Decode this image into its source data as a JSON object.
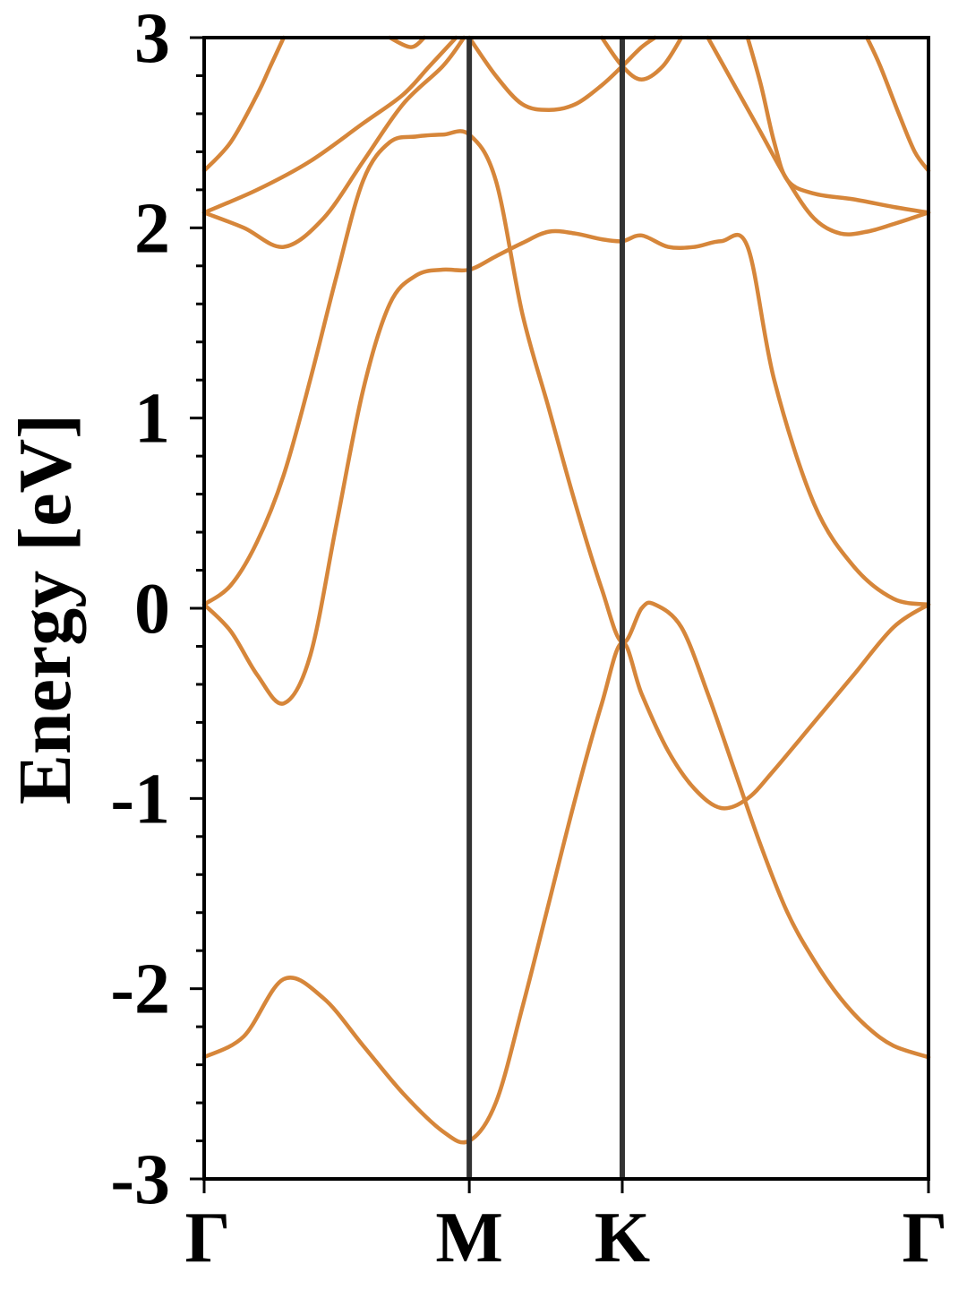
{
  "chart_data": {
    "type": "line",
    "title": "",
    "xlabel": "",
    "ylabel": "Energy [eV]",
    "ylim": [
      -3,
      3
    ],
    "yticks": [
      -3,
      -2,
      -1,
      0,
      1,
      2,
      3
    ],
    "ytick_labels": [
      "-3",
      "-2",
      "-1",
      "0",
      "1",
      "2",
      "3"
    ],
    "y_minor_step": 0.2,
    "k_points": [
      {
        "label": "Γ",
        "x": 0.0
      },
      {
        "label": "M",
        "x": 1.0
      },
      {
        "label": "K",
        "x": 1.577
      },
      {
        "label": "Γ",
        "x": 2.732
      }
    ],
    "grid": false,
    "legend": "none",
    "colors": {
      "band": "#d6863a",
      "k_line": "#333333"
    },
    "series": [
      {
        "values": [
          [
            0.0,
            -2.36
          ],
          [
            0.15,
            -2.25
          ],
          [
            0.3,
            -1.95
          ],
          [
            0.45,
            -2.05
          ],
          [
            0.6,
            -2.3
          ],
          [
            0.75,
            -2.55
          ],
          [
            0.9,
            -2.75
          ],
          [
            1.0,
            -2.8
          ],
          [
            1.1,
            -2.6
          ],
          [
            1.2,
            -2.1
          ],
          [
            1.3,
            -1.55
          ],
          [
            1.4,
            -1.0
          ],
          [
            1.5,
            -0.5
          ],
          [
            1.577,
            -0.18
          ],
          [
            1.65,
            -0.45
          ],
          [
            1.75,
            -0.75
          ],
          [
            1.85,
            -0.95
          ],
          [
            1.95,
            -1.05
          ],
          [
            2.05,
            -1.0
          ],
          [
            2.15,
            -0.85
          ],
          [
            2.3,
            -0.6
          ],
          [
            2.45,
            -0.35
          ],
          [
            2.6,
            -0.1
          ],
          [
            2.732,
            0.02
          ]
        ]
      },
      {
        "values": [
          [
            0.0,
            0.02
          ],
          [
            0.1,
            -0.12
          ],
          [
            0.2,
            -0.35
          ],
          [
            0.3,
            -0.5
          ],
          [
            0.4,
            -0.25
          ],
          [
            0.5,
            0.45
          ],
          [
            0.6,
            1.15
          ],
          [
            0.7,
            1.6
          ],
          [
            0.8,
            1.75
          ],
          [
            0.9,
            1.78
          ],
          [
            1.0,
            1.78
          ],
          [
            1.1,
            1.85
          ],
          [
            1.2,
            1.92
          ],
          [
            1.3,
            1.98
          ],
          [
            1.4,
            1.97
          ],
          [
            1.5,
            1.94
          ],
          [
            1.577,
            1.93
          ],
          [
            1.65,
            1.96
          ],
          [
            1.75,
            1.9
          ],
          [
            1.85,
            1.9
          ],
          [
            1.95,
            1.93
          ],
          [
            2.05,
            1.9
          ],
          [
            2.15,
            1.2
          ],
          [
            2.3,
            0.55
          ],
          [
            2.45,
            0.22
          ],
          [
            2.6,
            0.05
          ],
          [
            2.732,
            0.02
          ]
        ]
      },
      {
        "values": [
          [
            0.0,
            0.02
          ],
          [
            0.1,
            0.12
          ],
          [
            0.2,
            0.35
          ],
          [
            0.3,
            0.7
          ],
          [
            0.4,
            1.2
          ],
          [
            0.5,
            1.75
          ],
          [
            0.6,
            2.25
          ],
          [
            0.7,
            2.45
          ],
          [
            0.8,
            2.48
          ],
          [
            0.9,
            2.49
          ],
          [
            1.0,
            2.49
          ],
          [
            1.1,
            2.25
          ],
          [
            1.2,
            1.55
          ],
          [
            1.3,
            1.05
          ],
          [
            1.4,
            0.55
          ],
          [
            1.5,
            0.1
          ],
          [
            1.577,
            -0.18
          ],
          [
            1.65,
            0.0
          ],
          [
            1.7,
            0.02
          ],
          [
            1.8,
            -0.1
          ],
          [
            1.9,
            -0.45
          ],
          [
            2.0,
            -0.85
          ],
          [
            2.1,
            -1.25
          ],
          [
            2.2,
            -1.6
          ],
          [
            2.3,
            -1.85
          ],
          [
            2.4,
            -2.05
          ],
          [
            2.5,
            -2.2
          ],
          [
            2.6,
            -2.3
          ],
          [
            2.732,
            -2.36
          ]
        ]
      },
      {
        "values": [
          [
            0.0,
            2.08
          ],
          [
            0.15,
            2.0
          ],
          [
            0.3,
            1.9
          ],
          [
            0.45,
            2.05
          ],
          [
            0.6,
            2.35
          ],
          [
            0.75,
            2.65
          ],
          [
            0.9,
            2.85
          ],
          [
            0.98,
            3.0
          ]
        ]
      },
      {
        "values": [
          [
            0.0,
            2.08
          ],
          [
            0.2,
            2.2
          ],
          [
            0.4,
            2.35
          ],
          [
            0.6,
            2.55
          ],
          [
            0.75,
            2.7
          ],
          [
            0.85,
            2.85
          ],
          [
            0.95,
            3.0
          ]
        ]
      },
      {
        "values": [
          [
            0.0,
            2.3
          ],
          [
            0.1,
            2.45
          ],
          [
            0.2,
            2.7
          ],
          [
            0.25,
            2.85
          ],
          [
            0.3,
            3.0
          ]
        ]
      },
      {
        "values": [
          [
            0.7,
            3.0
          ],
          [
            0.78,
            2.95
          ],
          [
            0.83,
            3.0
          ]
        ]
      },
      {
        "values": [
          [
            1.0,
            3.0
          ],
          [
            1.1,
            2.8
          ],
          [
            1.2,
            2.65
          ],
          [
            1.3,
            2.62
          ],
          [
            1.4,
            2.65
          ],
          [
            1.5,
            2.75
          ],
          [
            1.577,
            2.85
          ],
          [
            1.65,
            2.95
          ],
          [
            1.7,
            3.0
          ]
        ]
      },
      {
        "values": [
          [
            1.5,
            3.0
          ],
          [
            1.577,
            2.85
          ],
          [
            1.65,
            2.78
          ],
          [
            1.73,
            2.85
          ],
          [
            1.8,
            3.0
          ]
        ]
      },
      {
        "values": [
          [
            1.9,
            3.0
          ],
          [
            2.0,
            2.75
          ],
          [
            2.1,
            2.5
          ],
          [
            2.2,
            2.25
          ],
          [
            2.3,
            2.05
          ],
          [
            2.4,
            1.97
          ],
          [
            2.5,
            1.98
          ],
          [
            2.6,
            2.02
          ],
          [
            2.732,
            2.08
          ]
        ]
      },
      {
        "values": [
          [
            2.05,
            3.0
          ],
          [
            2.1,
            2.75
          ],
          [
            2.15,
            2.45
          ],
          [
            2.2,
            2.25
          ],
          [
            2.3,
            2.18
          ],
          [
            2.45,
            2.15
          ],
          [
            2.6,
            2.11
          ],
          [
            2.732,
            2.08
          ]
        ]
      },
      {
        "values": [
          [
            2.5,
            3.0
          ],
          [
            2.55,
            2.85
          ],
          [
            2.62,
            2.6
          ],
          [
            2.68,
            2.4
          ],
          [
            2.732,
            2.3
          ]
        ]
      }
    ]
  }
}
